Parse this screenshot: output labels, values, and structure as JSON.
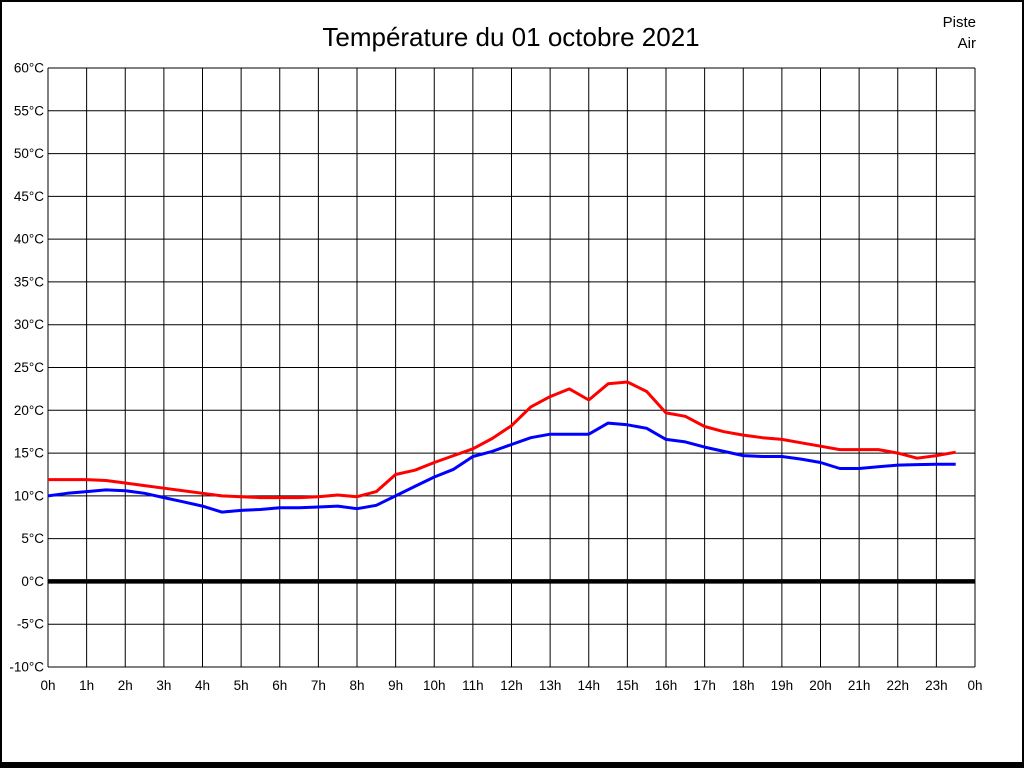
{
  "header": {
    "title": "Température du 01 octobre 2021"
  },
  "legend": {
    "piste_label": "Piste",
    "air_label": "Air",
    "position": "top-right"
  },
  "colors": {
    "piste": "#ff0000",
    "air": "#0000ff",
    "grid": "#000000",
    "zero_line": "#000000",
    "text": "#000000",
    "background": "#ffffff",
    "border": "#000000"
  },
  "chart_data": {
    "type": "line",
    "title": "Température du 01 octobre 2021",
    "xlabel": "",
    "ylabel": "",
    "xlim": [
      0,
      24
    ],
    "ylim": [
      -10,
      60
    ],
    "x_step": 1,
    "y_step": 5,
    "grid": true,
    "zero_line_at": 0,
    "legend_position": "top-right",
    "x_ticks": [
      "0h",
      "1h",
      "2h",
      "3h",
      "4h",
      "5h",
      "6h",
      "7h",
      "8h",
      "9h",
      "10h",
      "11h",
      "12h",
      "13h",
      "14h",
      "15h",
      "16h",
      "17h",
      "18h",
      "19h",
      "20h",
      "21h",
      "22h",
      "23h",
      "0h"
    ],
    "y_ticks": [
      "60°C",
      "55°C",
      "50°C",
      "45°C",
      "40°C",
      "35°C",
      "30°C",
      "25°C",
      "20°C",
      "15°C",
      "10°C",
      "5°C",
      "0°C",
      "-5°C",
      "-10°C"
    ],
    "x": [
      0,
      0.5,
      1,
      1.5,
      2,
      2.5,
      3,
      3.5,
      4,
      4.5,
      5,
      5.5,
      6,
      6.5,
      7,
      7.5,
      8,
      8.5,
      9,
      9.5,
      10,
      10.5,
      11,
      11.5,
      12,
      12.5,
      13,
      13.5,
      14,
      14.5,
      15,
      15.5,
      16,
      16.5,
      17,
      17.5,
      18,
      18.5,
      19,
      19.5,
      20,
      20.5,
      21,
      21.5,
      22,
      22.5,
      23,
      23.5
    ],
    "series": [
      {
        "name": "Piste",
        "color": "#ff0000",
        "values": [
          11.9,
          11.9,
          11.9,
          11.8,
          11.5,
          11.2,
          10.9,
          10.6,
          10.3,
          10.0,
          9.9,
          9.8,
          9.8,
          9.8,
          9.9,
          10.1,
          9.9,
          10.5,
          12.5,
          13.0,
          13.9,
          14.7,
          15.5,
          16.7,
          18.2,
          20.4,
          21.6,
          22.5,
          21.2,
          23.1,
          23.3,
          22.2,
          19.7,
          19.3,
          18.1,
          17.5,
          17.1,
          16.8,
          16.6,
          16.2,
          15.8,
          15.4,
          15.4,
          15.4,
          15.0,
          14.4,
          14.7,
          15.1
        ]
      },
      {
        "name": "Air",
        "color": "#0000ff",
        "values": [
          10.0,
          10.3,
          10.5,
          10.7,
          10.6,
          10.3,
          9.8,
          9.3,
          8.8,
          8.1,
          8.3,
          8.4,
          8.6,
          8.6,
          8.7,
          8.8,
          8.5,
          8.9,
          10.0,
          11.1,
          12.2,
          13.1,
          14.6,
          15.2,
          16.0,
          16.8,
          17.2,
          17.2,
          17.2,
          18.5,
          18.3,
          17.9,
          16.6,
          16.3,
          15.7,
          15.2,
          14.7,
          14.6,
          14.6,
          14.3,
          13.9,
          13.2,
          13.2,
          13.4,
          13.6,
          13.65,
          13.7,
          13.7
        ]
      }
    ]
  }
}
